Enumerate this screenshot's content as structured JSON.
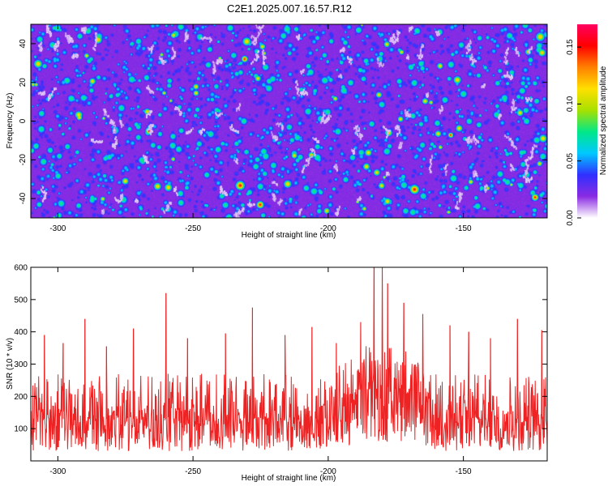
{
  "title": "C2E1.2025.007.16.57.R12",
  "chart_data": [
    {
      "type": "heatmap",
      "xlabel": "Height of straight line (km)",
      "ylabel": "Frequency (Hz)",
      "xlim": [
        -310,
        -119
      ],
      "ylim": [
        -50,
        50
      ],
      "x_ticks": [
        -300,
        -250,
        -200,
        -150
      ],
      "y_ticks": [
        -40,
        -20,
        0,
        20,
        40
      ],
      "colorbar": {
        "label": "Normalized spectral amplitude",
        "range": [
          0,
          0.17
        ],
        "ticks": [
          "0.00",
          "0.05",
          "0.10",
          "0.15"
        ],
        "colors": [
          "#ffffff",
          "#8a2be2",
          "#3030ff",
          "#00c8ff",
          "#00e888",
          "#a8e000",
          "#ffe000",
          "#ff8000",
          "#ff0000",
          "#ff0060"
        ]
      },
      "field": {
        "background_level": 0.02,
        "feature_levels": [
          0.04,
          0.06,
          0.08,
          0.12,
          0.15
        ],
        "enhanced_band_x": [
          -190,
          -170
        ]
      }
    },
    {
      "type": "line",
      "xlabel": "Height of straight line (km)",
      "ylabel": "SNR (10 * v/v)",
      "xlim": [
        -310,
        -119
      ],
      "ylim": [
        0,
        600
      ],
      "x_ticks": [
        -300,
        -250,
        -200,
        -150
      ],
      "y_ticks": [
        100,
        200,
        300,
        400,
        500,
        600
      ],
      "color": "#ee2222",
      "baseline_envelope": {
        "low": 30,
        "mean": 130,
        "typical_high": 270
      },
      "band_envelope": {
        "x_range": [
          -190,
          -170
        ],
        "low": 60,
        "mean": 220,
        "typical_high": 360
      },
      "peaks": [
        {
          "x": -305,
          "y": 390
        },
        {
          "x": -298,
          "y": 365
        },
        {
          "x": -290,
          "y": 440
        },
        {
          "x": -282,
          "y": 355
        },
        {
          "x": -272,
          "y": 410
        },
        {
          "x": -260,
          "y": 520
        },
        {
          "x": -252,
          "y": 380
        },
        {
          "x": -238,
          "y": 395
        },
        {
          "x": -228,
          "y": 475
        },
        {
          "x": -216,
          "y": 390
        },
        {
          "x": -206,
          "y": 415
        },
        {
          "x": -197,
          "y": 365
        },
        {
          "x": -188,
          "y": 430
        },
        {
          "x": -183,
          "y": 600
        },
        {
          "x": -180,
          "y": 600
        },
        {
          "x": -178,
          "y": 550
        },
        {
          "x": -172,
          "y": 490
        },
        {
          "x": -165,
          "y": 455
        },
        {
          "x": -155,
          "y": 420
        },
        {
          "x": -148,
          "y": 400
        },
        {
          "x": -140,
          "y": 380
        },
        {
          "x": -130,
          "y": 440
        },
        {
          "x": -121,
          "y": 405
        }
      ]
    }
  ]
}
